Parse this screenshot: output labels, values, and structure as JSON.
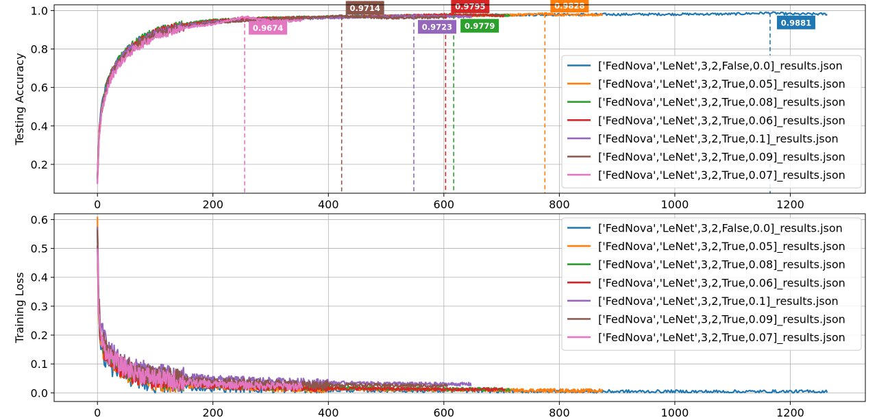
{
  "chart_data": [
    {
      "type": "line",
      "title": "",
      "xlabel": "",
      "ylabel": "Testing Accuracy",
      "xlim": [
        -75,
        1330
      ],
      "ylim": [
        0.05,
        1.03
      ],
      "xticks": [
        0,
        200,
        400,
        600,
        800,
        1000,
        1200
      ],
      "yticks": [
        0.2,
        0.4,
        0.6,
        0.8,
        1.0
      ],
      "grid": true,
      "legend_position": "lower-right",
      "series": [
        {
          "name": "['FedNova','LeNet',3,2,False,0.0]_results.json",
          "color": "#1f77b4",
          "length": 1265,
          "x": [
            0,
            3,
            8,
            15,
            25,
            40,
            60,
            80,
            100,
            130,
            160,
            200,
            250,
            300,
            400,
            500,
            600,
            700,
            800,
            900,
            1000,
            1100,
            1165,
            1200,
            1265
          ],
          "y": [
            0.13,
            0.38,
            0.52,
            0.61,
            0.69,
            0.76,
            0.82,
            0.86,
            0.89,
            0.92,
            0.935,
            0.948,
            0.956,
            0.962,
            0.968,
            0.972,
            0.975,
            0.977,
            0.979,
            0.98,
            0.981,
            0.982,
            0.9881,
            0.982,
            0.982
          ],
          "best_x": 1165,
          "best_y": 0.9881,
          "best_label": "0.9881"
        },
        {
          "name": "['FedNova','LeNet',3,2,True,0.05]_results.json",
          "color": "#ff7f0e",
          "length": 875,
          "x": [
            0,
            3,
            8,
            15,
            25,
            40,
            60,
            80,
            100,
            130,
            160,
            200,
            250,
            300,
            400,
            500,
            600,
            700,
            775,
            800,
            875
          ],
          "y": [
            0.12,
            0.37,
            0.5,
            0.59,
            0.68,
            0.75,
            0.81,
            0.85,
            0.88,
            0.91,
            0.93,
            0.945,
            0.955,
            0.96,
            0.966,
            0.97,
            0.973,
            0.975,
            0.9828,
            0.977,
            0.978
          ],
          "best_x": 775,
          "best_y": 0.9828,
          "best_label": "0.9828"
        },
        {
          "name": "['FedNova','LeNet',3,2,True,0.08]_results.json",
          "color": "#2ca02c",
          "length": 715,
          "x": [
            0,
            3,
            8,
            15,
            25,
            40,
            60,
            80,
            100,
            130,
            160,
            200,
            250,
            300,
            400,
            500,
            617,
            715
          ],
          "y": [
            0.12,
            0.38,
            0.51,
            0.6,
            0.69,
            0.76,
            0.82,
            0.86,
            0.89,
            0.915,
            0.935,
            0.95,
            0.957,
            0.962,
            0.967,
            0.971,
            0.9779,
            0.974
          ],
          "best_x": 617,
          "best_y": 0.9779,
          "best_label": "0.9779"
        },
        {
          "name": "['FedNova','LeNet',3,2,True,0.06]_results.json",
          "color": "#d62728",
          "length": 705,
          "x": [
            0,
            3,
            8,
            15,
            25,
            40,
            60,
            80,
            100,
            130,
            160,
            200,
            250,
            300,
            400,
            500,
            603,
            705
          ],
          "y": [
            0.12,
            0.37,
            0.5,
            0.6,
            0.68,
            0.75,
            0.81,
            0.85,
            0.885,
            0.91,
            0.93,
            0.945,
            0.955,
            0.96,
            0.966,
            0.97,
            0.9795,
            0.973
          ],
          "best_x": 603,
          "best_y": 0.9795,
          "best_label": "0.9795"
        },
        {
          "name": "['FedNova','LeNet',3,2,True,0.1]_results.json",
          "color": "#9467bd",
          "length": 648,
          "x": [
            0,
            3,
            8,
            15,
            25,
            40,
            60,
            80,
            100,
            130,
            160,
            200,
            250,
            300,
            400,
            548,
            648
          ],
          "y": [
            0.11,
            0.36,
            0.5,
            0.59,
            0.68,
            0.75,
            0.81,
            0.85,
            0.88,
            0.905,
            0.925,
            0.94,
            0.95,
            0.955,
            0.962,
            0.9723,
            0.967
          ],
          "best_x": 548,
          "best_y": 0.9723,
          "best_label": "0.9723"
        },
        {
          "name": "['FedNova','LeNet',3,2,True,0.09]_results.json",
          "color": "#8c564b",
          "length": 605,
          "x": [
            0,
            3,
            8,
            15,
            25,
            40,
            60,
            80,
            100,
            130,
            160,
            200,
            250,
            300,
            423,
            500,
            605
          ],
          "y": [
            0.11,
            0.36,
            0.49,
            0.58,
            0.67,
            0.74,
            0.8,
            0.84,
            0.875,
            0.9,
            0.92,
            0.935,
            0.947,
            0.953,
            0.9714,
            0.962,
            0.965
          ],
          "best_x": 423,
          "best_y": 0.9714,
          "best_label": "0.9714"
        },
        {
          "name": "['FedNova','LeNet',3,2,True,0.07]_results.json",
          "color": "#e377c2",
          "length": 355,
          "x": [
            0,
            3,
            8,
            15,
            25,
            40,
            60,
            80,
            100,
            130,
            160,
            200,
            255,
            300,
            355
          ],
          "y": [
            0.11,
            0.35,
            0.48,
            0.57,
            0.66,
            0.73,
            0.79,
            0.83,
            0.865,
            0.895,
            0.915,
            0.93,
            0.9674,
            0.945,
            0.948
          ],
          "best_x": 255,
          "best_y": 0.9674,
          "best_label": "0.9674"
        }
      ]
    },
    {
      "type": "line",
      "title": "",
      "xlabel": "",
      "ylabel": "Training Loss",
      "xlim": [
        -75,
        1330
      ],
      "ylim": [
        -0.03,
        0.62
      ],
      "xticks": [
        0,
        200,
        400,
        600,
        800,
        1000,
        1200
      ],
      "yticks": [
        0.0,
        0.1,
        0.2,
        0.3,
        0.4,
        0.5,
        0.6
      ],
      "grid": true,
      "legend_position": "upper-right",
      "series": [
        {
          "name": "['FedNova','LeNet',3,2,False,0.0]_results.json",
          "color": "#1f77b4",
          "length": 1265,
          "x": [
            0,
            2,
            5,
            10,
            20,
            40,
            60,
            100,
            150,
            200,
            300,
            400,
            600,
            800,
            1000,
            1265
          ],
          "y": [
            0.59,
            0.3,
            0.18,
            0.13,
            0.1,
            0.065,
            0.05,
            0.03,
            0.022,
            0.017,
            0.012,
            0.009,
            0.007,
            0.005,
            0.004,
            0.004
          ]
        },
        {
          "name": "['FedNova','LeNet',3,2,True,0.05]_results.json",
          "color": "#ff7f0e",
          "length": 875,
          "x": [
            0,
            2,
            5,
            10,
            20,
            40,
            60,
            100,
            150,
            200,
            300,
            400,
            600,
            800,
            875
          ],
          "y": [
            0.58,
            0.3,
            0.19,
            0.15,
            0.12,
            0.08,
            0.06,
            0.04,
            0.03,
            0.025,
            0.018,
            0.014,
            0.01,
            0.008,
            0.007
          ]
        },
        {
          "name": "['FedNova','LeNet',3,2,True,0.08]_results.json",
          "color": "#2ca02c",
          "length": 715,
          "x": [
            0,
            2,
            5,
            10,
            20,
            40,
            60,
            100,
            150,
            200,
            300,
            400,
            600,
            715
          ],
          "y": [
            0.57,
            0.3,
            0.2,
            0.16,
            0.13,
            0.09,
            0.07,
            0.05,
            0.035,
            0.03,
            0.022,
            0.018,
            0.013,
            0.012
          ]
        },
        {
          "name": "['FedNova','LeNet',3,2,True,0.06]_results.json",
          "color": "#d62728",
          "length": 705,
          "x": [
            0,
            2,
            5,
            10,
            20,
            40,
            60,
            100,
            150,
            200,
            300,
            400,
            600,
            705
          ],
          "y": [
            0.54,
            0.3,
            0.19,
            0.15,
            0.12,
            0.085,
            0.065,
            0.045,
            0.032,
            0.026,
            0.02,
            0.016,
            0.012,
            0.011
          ]
        },
        {
          "name": "['FedNova','LeNet',3,2,True,0.1]_results.json",
          "color": "#9467bd",
          "length": 648,
          "x": [
            0,
            2,
            5,
            10,
            20,
            40,
            60,
            100,
            150,
            200,
            300,
            400,
            500,
            600,
            648
          ],
          "y": [
            0.56,
            0.35,
            0.24,
            0.2,
            0.15,
            0.11,
            0.09,
            0.07,
            0.055,
            0.048,
            0.04,
            0.035,
            0.032,
            0.03,
            0.03
          ]
        },
        {
          "name": "['FedNova','LeNet',3,2,True,0.09]_results.json",
          "color": "#8c564b",
          "length": 605,
          "x": [
            0,
            2,
            5,
            10,
            20,
            40,
            60,
            100,
            150,
            200,
            300,
            400,
            500,
            605
          ],
          "y": [
            0.55,
            0.33,
            0.22,
            0.18,
            0.14,
            0.1,
            0.08,
            0.06,
            0.045,
            0.04,
            0.032,
            0.028,
            0.026,
            0.024
          ]
        },
        {
          "name": "['FedNova','LeNet',3,2,True,0.07]_results.json",
          "color": "#e377c2",
          "length": 355,
          "x": [
            0,
            2,
            5,
            10,
            20,
            40,
            60,
            100,
            150,
            200,
            300,
            355
          ],
          "y": [
            0.53,
            0.3,
            0.2,
            0.16,
            0.13,
            0.095,
            0.075,
            0.05,
            0.036,
            0.03,
            0.024,
            0.022
          ]
        }
      ]
    }
  ]
}
